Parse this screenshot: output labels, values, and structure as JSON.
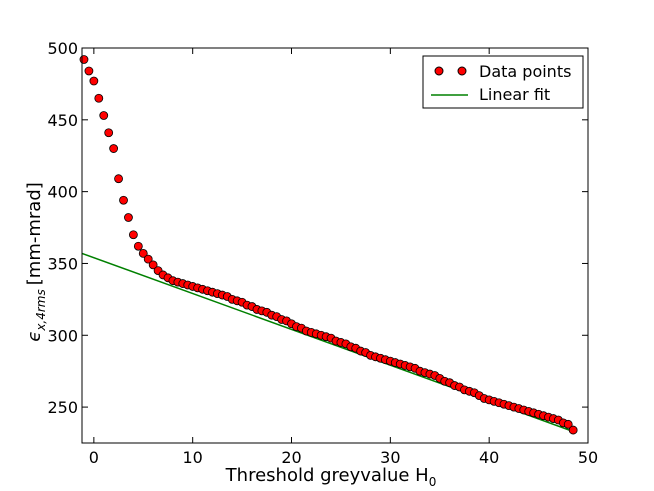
{
  "chart_data": {
    "type": "scatter",
    "title": "",
    "xlabel": "Threshold greyvalue H",
    "xlabel_sub": "0",
    "ylabel_symbol": "ϵ",
    "ylabel_sub": "x,4rms",
    "ylabel_unit": "[mm-mrad]",
    "xlim": [
      -1.2,
      50
    ],
    "ylim": [
      225,
      500
    ],
    "xticks": [
      0,
      10,
      20,
      30,
      40,
      50
    ],
    "yticks": [
      250,
      300,
      350,
      400,
      450,
      500
    ],
    "grid": false,
    "legend_position": "top-right",
    "series": [
      {
        "name": "Data points",
        "kind": "scatter",
        "color": "#ff0000",
        "points": [
          [
            -1.0,
            492
          ],
          [
            -0.5,
            484
          ],
          [
            0.0,
            477
          ],
          [
            0.5,
            465
          ],
          [
            1.0,
            453
          ],
          [
            1.5,
            441
          ],
          [
            2.0,
            430
          ],
          [
            2.5,
            409
          ],
          [
            3.0,
            394
          ],
          [
            3.5,
            382
          ],
          [
            4.0,
            370
          ],
          [
            4.5,
            362
          ],
          [
            5.0,
            357
          ],
          [
            5.5,
            353
          ],
          [
            6.0,
            349
          ],
          [
            6.5,
            345
          ],
          [
            7.0,
            342
          ],
          [
            7.5,
            340
          ],
          [
            8.0,
            338
          ],
          [
            8.5,
            337
          ],
          [
            9.0,
            336
          ],
          [
            9.5,
            335
          ],
          [
            10.0,
            334
          ],
          [
            10.5,
            333
          ],
          [
            11.0,
            332
          ],
          [
            11.5,
            331
          ],
          [
            12.0,
            330
          ],
          [
            12.5,
            329
          ],
          [
            13.0,
            328
          ],
          [
            13.5,
            327
          ],
          [
            14.0,
            325
          ],
          [
            14.5,
            324
          ],
          [
            15.0,
            323
          ],
          [
            15.5,
            321
          ],
          [
            16.0,
            320
          ],
          [
            16.5,
            318
          ],
          [
            17.0,
            317
          ],
          [
            17.5,
            316
          ],
          [
            18.0,
            314
          ],
          [
            18.5,
            313
          ],
          [
            19.0,
            311
          ],
          [
            19.5,
            310
          ],
          [
            20.0,
            308
          ],
          [
            20.5,
            306
          ],
          [
            21.0,
            305
          ],
          [
            21.5,
            303
          ],
          [
            22.0,
            302
          ],
          [
            22.5,
            301
          ],
          [
            23.0,
            300
          ],
          [
            23.5,
            299
          ],
          [
            24.0,
            298
          ],
          [
            24.5,
            296
          ],
          [
            25.0,
            295
          ],
          [
            25.5,
            294
          ],
          [
            26.0,
            292
          ],
          [
            26.5,
            291
          ],
          [
            27.0,
            289
          ],
          [
            27.5,
            288
          ],
          [
            28.0,
            286
          ],
          [
            28.5,
            285
          ],
          [
            29.0,
            284
          ],
          [
            29.5,
            283
          ],
          [
            30.0,
            282
          ],
          [
            30.5,
            281
          ],
          [
            31.0,
            280
          ],
          [
            31.5,
            279
          ],
          [
            32.0,
            278
          ],
          [
            32.5,
            277
          ],
          [
            33.0,
            275
          ],
          [
            33.5,
            274
          ],
          [
            34.0,
            273
          ],
          [
            34.5,
            272
          ],
          [
            35.0,
            270
          ],
          [
            35.5,
            268
          ],
          [
            36.0,
            267
          ],
          [
            36.5,
            265
          ],
          [
            37.0,
            264
          ],
          [
            37.5,
            262
          ],
          [
            38.0,
            261
          ],
          [
            38.5,
            260
          ],
          [
            39.0,
            258
          ],
          [
            39.5,
            256
          ],
          [
            40.0,
            255
          ],
          [
            40.5,
            254
          ],
          [
            41.0,
            253
          ],
          [
            41.5,
            252
          ],
          [
            42.0,
            251
          ],
          [
            42.5,
            250
          ],
          [
            43.0,
            249
          ],
          [
            43.5,
            248
          ],
          [
            44.0,
            247
          ],
          [
            44.5,
            246
          ],
          [
            45.0,
            245
          ],
          [
            45.5,
            244
          ],
          [
            46.0,
            243
          ],
          [
            46.5,
            242
          ],
          [
            47.0,
            241
          ],
          [
            47.5,
            239
          ],
          [
            48.0,
            238
          ],
          [
            48.5,
            234
          ]
        ]
      },
      {
        "name": "Linear fit",
        "kind": "line",
        "color": "#008000",
        "points": [
          [
            -1.2,
            357
          ],
          [
            48.5,
            233
          ]
        ]
      }
    ]
  }
}
